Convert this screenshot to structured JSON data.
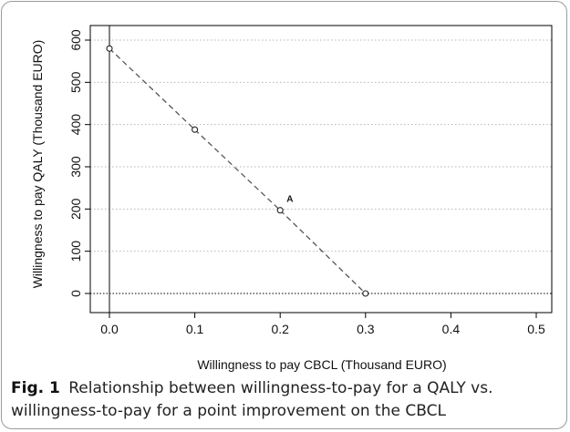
{
  "chart_data": {
    "type": "line",
    "xlabel": "Willingness to pay CBCL (Thousand EURO)",
    "ylabel": "Willingness to pay QALY (Thousand EURO)",
    "xlim": [
      0,
      0.5
    ],
    "ylim": [
      0,
      600
    ],
    "x_ticks": [
      "0.0",
      "0.1",
      "0.2",
      "0.3",
      "0.4",
      "0.5"
    ],
    "y_ticks": [
      "0",
      "100",
      "200",
      "300",
      "400",
      "500",
      "600"
    ],
    "grid": "horizontal dotted",
    "series": [
      {
        "x": [
          0.0,
          0.1,
          0.2,
          0.3
        ],
        "y": [
          580,
          388,
          197,
          0
        ],
        "style": "dashed line with open circle markers"
      }
    ],
    "reference_lines": {
      "vertical_x": 0,
      "horizontal_y": 0
    },
    "annotations": [
      {
        "text": "A",
        "x": 0.2,
        "y": 197
      }
    ]
  },
  "caption": {
    "label": "Fig. 1",
    "text": "Relationship between willingness-to-pay for a QALY vs. willingness-to-pay for a point improvement on the CBCL"
  },
  "colors": {
    "line": "#555555",
    "frame": "#000000",
    "grid": "#b5b5b5",
    "reference": "#333333"
  }
}
